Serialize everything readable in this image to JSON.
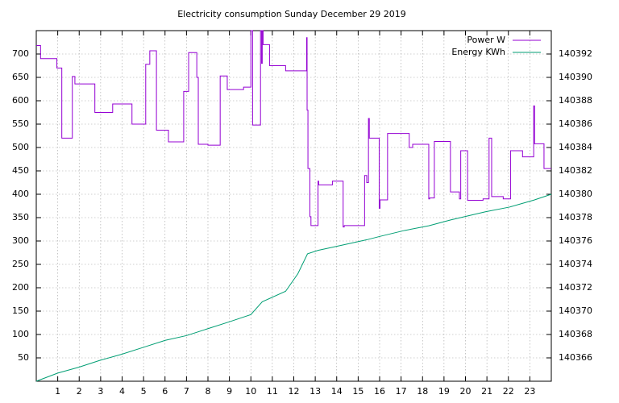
{
  "chart_data": {
    "type": "line",
    "title": "Electricity consumption Sunday December 29 2019",
    "xlim": [
      0,
      24
    ],
    "xticks": [
      1,
      2,
      3,
      4,
      5,
      6,
      7,
      8,
      9,
      10,
      11,
      12,
      13,
      14,
      15,
      16,
      17,
      18,
      19,
      20,
      21,
      22,
      23
    ],
    "ylim": [
      0,
      750
    ],
    "yticks": [
      50,
      100,
      150,
      200,
      250,
      300,
      350,
      400,
      450,
      500,
      550,
      600,
      650,
      700
    ],
    "y2lim": [
      140364,
      140394
    ],
    "y2ticks": [
      140366,
      140368,
      140370,
      140372,
      140374,
      140376,
      140378,
      140380,
      140382,
      140384,
      140386,
      140388,
      140390,
      140392
    ],
    "grid": true,
    "legend": "top-right",
    "series": [
      {
        "name": "Power W",
        "color": "#9400d3",
        "style": "steps",
        "x": [
          0,
          0.2,
          0.96,
          1.19,
          1.68,
          1.8,
          2.73,
          3.56,
          4.46,
          5.1,
          5.29,
          5.6,
          6.16,
          6.87,
          7.1,
          7.48,
          7.55,
          8.0,
          8.57,
          8.9,
          9.66,
          10.0,
          10.08,
          10.45,
          10.5,
          10.53,
          10.57,
          10.87,
          11.62,
          12.6,
          12.62,
          12.66,
          12.75,
          12.8,
          13.13,
          13.16,
          13.8,
          14.3,
          14.35,
          15.3,
          15.4,
          15.48,
          15.52,
          15.98,
          16.02,
          16.37,
          17.38,
          17.54,
          18.29,
          18.33,
          18.55,
          19.3,
          19.72,
          19.78,
          20.1,
          20.82,
          21.1,
          21.22,
          21.76,
          22.1,
          22.66,
          23.18,
          23.22,
          23.66,
          23.72,
          24
        ],
        "values": [
          718,
          690,
          670,
          520,
          652,
          636,
          575,
          593,
          550,
          678,
          707,
          537,
          512,
          620,
          703,
          650,
          507,
          505,
          653,
          624,
          629,
          750,
          548,
          750,
          680,
          750,
          720,
          675,
          664,
          735,
          580,
          455,
          352,
          333,
          428,
          420,
          428,
          330,
          333,
          440,
          425,
          562,
          520,
          370,
          388,
          530,
          500,
          507,
          390,
          392,
          513,
          405,
          390,
          493,
          387,
          390,
          520,
          395,
          390,
          493,
          480,
          589,
          508,
          455,
          455,
          455
        ]
      },
      {
        "name": "Energy KWh",
        "color": "#009e73",
        "axis": "y2",
        "style": "lines",
        "x": [
          0,
          1.0,
          1.98,
          2.99,
          3.97,
          4.99,
          6.01,
          6.99,
          8.0,
          9.02,
          10.0,
          10.53,
          11.62,
          12.19,
          12.64,
          13.13,
          14.15,
          15.39,
          16.03,
          17.16,
          18.29,
          19.31,
          20.93,
          22.05,
          23.19,
          24
        ],
        "values": [
          140364.0,
          140364.7,
          140365.2,
          140365.8,
          140366.3,
          140366.9,
          140367.5,
          140367.9,
          140368.5,
          140369.1,
          140369.7,
          140370.8,
          140371.7,
          140373.2,
          140374.9,
          140375.2,
          140375.6,
          140376.1,
          140376.4,
          140376.9,
          140377.3,
          140377.8,
          140378.5,
          140378.9,
          140379.5,
          140380.0
        ]
      }
    ]
  }
}
